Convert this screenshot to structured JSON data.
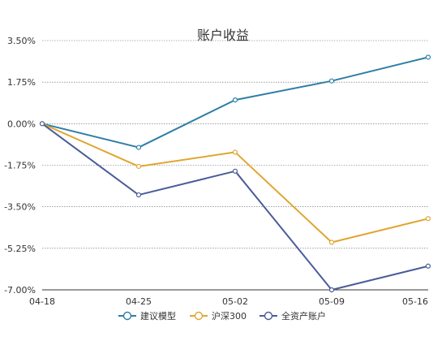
{
  "chart_data": {
    "type": "line",
    "title": "账户收益",
    "categories": [
      "04-18",
      "04-25",
      "05-02",
      "05-09",
      "05-16"
    ],
    "y_ticks": [
      "3.50%",
      "1.75%",
      "0.00%",
      "-1.75%",
      "-3.50%",
      "-5.25%",
      "-7.00%"
    ],
    "ylim": [
      -7.0,
      3.5
    ],
    "y_unit": "%",
    "grid": true,
    "legend_position": "bottom",
    "series": [
      {
        "name": "建议模型",
        "color": "#2e7ea6",
        "values": [
          0.0,
          -1.0,
          1.0,
          1.8,
          2.8
        ]
      },
      {
        "name": "沪深300",
        "color": "#e0a632",
        "values": [
          0.0,
          -1.8,
          -1.2,
          -5.0,
          -4.0
        ]
      },
      {
        "name": "全资产账户",
        "color": "#4a5c99",
        "values": [
          0.0,
          -3.0,
          -2.0,
          -7.0,
          -6.0
        ]
      }
    ]
  }
}
